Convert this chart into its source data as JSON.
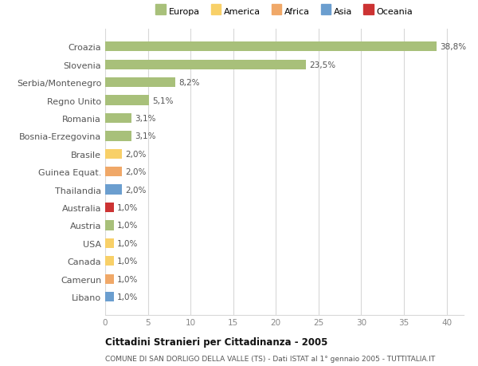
{
  "title": "Cittadini Stranieri per Cittadinanza - 2005",
  "subtitle": "COMUNE DI SAN DORLIGO DELLA VALLE (TS) - Dati ISTAT al 1° gennaio 2005 - TUTTITALIA.IT",
  "categories": [
    "Libano",
    "Camerun",
    "Canada",
    "USA",
    "Austria",
    "Australia",
    "Thailandia",
    "Guinea Equat.",
    "Brasile",
    "Bosnia-Erzegovina",
    "Romania",
    "Regno Unito",
    "Serbia/Montenegro",
    "Slovenia",
    "Croazia"
  ],
  "values": [
    1.0,
    1.0,
    1.0,
    1.0,
    1.0,
    1.0,
    2.0,
    2.0,
    2.0,
    3.1,
    3.1,
    5.1,
    8.2,
    23.5,
    38.8
  ],
  "labels": [
    "1,0%",
    "1,0%",
    "1,0%",
    "1,0%",
    "1,0%",
    "1,0%",
    "2,0%",
    "2,0%",
    "2,0%",
    "3,1%",
    "3,1%",
    "5,1%",
    "8,2%",
    "23,5%",
    "38,8%"
  ],
  "colors": [
    "#6b9ecf",
    "#f0a868",
    "#f8d068",
    "#f8d068",
    "#a8c07a",
    "#cc3333",
    "#6b9ecf",
    "#f0a868",
    "#f8d068",
    "#a8c07a",
    "#a8c07a",
    "#a8c07a",
    "#a8c07a",
    "#a8c07a",
    "#a8c07a"
  ],
  "legend": [
    {
      "label": "Europa",
      "color": "#a8c07a"
    },
    {
      "label": "America",
      "color": "#f8d068"
    },
    {
      "label": "Africa",
      "color": "#f0a868"
    },
    {
      "label": "Asia",
      "color": "#6b9ecf"
    },
    {
      "label": "Oceania",
      "color": "#cc3333"
    }
  ],
  "xlim": [
    0,
    42
  ],
  "xticks": [
    0,
    5,
    10,
    15,
    20,
    25,
    30,
    35,
    40
  ],
  "background_color": "#ffffff",
  "grid_color": "#d8d8d8",
  "bar_height": 0.55
}
